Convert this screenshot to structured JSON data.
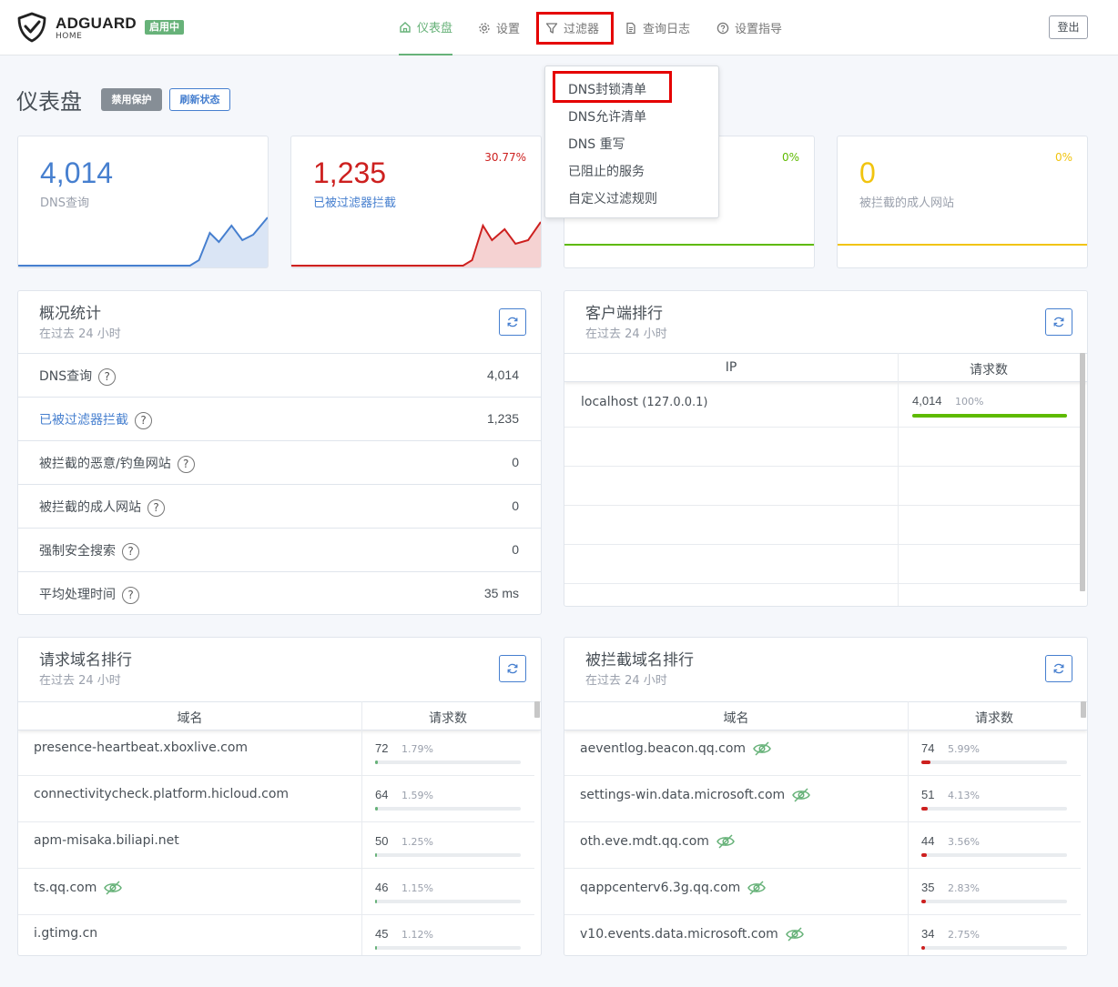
{
  "header": {
    "brand": "ADGUARD",
    "brand_sub": "HOME",
    "status_badge": "启用中",
    "nav": [
      "仪表盘",
      "设置",
      "过滤器",
      "查询日志",
      "设置指导"
    ],
    "logout": "登出"
  },
  "dropdown": {
    "items": [
      "DNS封锁清单",
      "DNS允许清单",
      "DNS 重写",
      "已阻止的服务",
      "自定义过滤规则"
    ]
  },
  "page": {
    "title": "仪表盘",
    "disable_btn": "禁用保护",
    "refresh_btn": "刷新状态"
  },
  "stats": [
    {
      "value": "4,014",
      "label": "DNS查询",
      "percent": "",
      "color": "#467fcf"
    },
    {
      "value": "1,235",
      "label": "已被过滤器拦截",
      "percent": "30.77%",
      "color": "#cd201f"
    },
    {
      "value": "",
      "label": "",
      "percent": "0%",
      "color": "#5eba00"
    },
    {
      "value": "0",
      "label": "被拦截的成人网站",
      "percent": "0%",
      "color": "#f1c40f"
    }
  ],
  "overview": {
    "title": "概况统计",
    "subtitle": "在过去 24 小时",
    "rows": [
      {
        "label": "DNS查询",
        "value": "4,014"
      },
      {
        "label": "已被过滤器拦截",
        "value": "1,235"
      },
      {
        "label": "被拦截的恶意/钓鱼网站",
        "value": "0"
      },
      {
        "label": "被拦截的成人网站",
        "value": "0"
      },
      {
        "label": "强制安全搜索",
        "value": "0"
      },
      {
        "label": "平均处理时间",
        "value": "35 ms"
      }
    ]
  },
  "clients": {
    "title": "客户端排行",
    "subtitle": "在过去 24 小时",
    "col_ip": "IP",
    "col_count": "请求数",
    "rows": [
      {
        "name": "localhost",
        "ip": "(127.0.0.1)",
        "count": "4,014",
        "percent": "100%",
        "fraction": 1.0
      }
    ]
  },
  "top_queried": {
    "title": "请求域名排行",
    "subtitle": "在过去 24 小时",
    "col_domain": "域名",
    "col_count": "请求数",
    "rows": [
      {
        "domain": "presence-heartbeat.xboxlive.com",
        "count": "72",
        "percent": "1.79%",
        "fraction": 0.0179,
        "tracker": false
      },
      {
        "domain": "connectivitycheck.platform.hicloud.com",
        "count": "64",
        "percent": "1.59%",
        "fraction": 0.0159,
        "tracker": false
      },
      {
        "domain": "apm-misaka.biliapi.net",
        "count": "50",
        "percent": "1.25%",
        "fraction": 0.0125,
        "tracker": false
      },
      {
        "domain": "ts.qq.com",
        "count": "46",
        "percent": "1.15%",
        "fraction": 0.0115,
        "tracker": true
      },
      {
        "domain": "i.gtimg.cn",
        "count": "45",
        "percent": "1.12%",
        "fraction": 0.0112,
        "tracker": false
      }
    ]
  },
  "top_blocked": {
    "title": "被拦截域名排行",
    "subtitle": "在过去 24 小时",
    "col_domain": "域名",
    "col_count": "请求数",
    "rows": [
      {
        "domain": "aeventlog.beacon.qq.com",
        "count": "74",
        "percent": "5.99%",
        "fraction": 0.0599,
        "tracker": true
      },
      {
        "domain": "settings-win.data.microsoft.com",
        "count": "51",
        "percent": "4.13%",
        "fraction": 0.0413,
        "tracker": true
      },
      {
        "domain": "oth.eve.mdt.qq.com",
        "count": "44",
        "percent": "3.56%",
        "fraction": 0.0356,
        "tracker": true
      },
      {
        "domain": "qappcenterv6.3g.qq.com",
        "count": "35",
        "percent": "2.83%",
        "fraction": 0.0283,
        "tracker": true
      },
      {
        "domain": "v10.events.data.microsoft.com",
        "count": "34",
        "percent": "2.75%",
        "fraction": 0.0275,
        "tracker": true
      }
    ]
  },
  "colors": {
    "green": "#67b279",
    "blue": "#467fcf",
    "red": "#cd201f",
    "yellow": "#f1c40f",
    "highlight": "#e50000"
  }
}
